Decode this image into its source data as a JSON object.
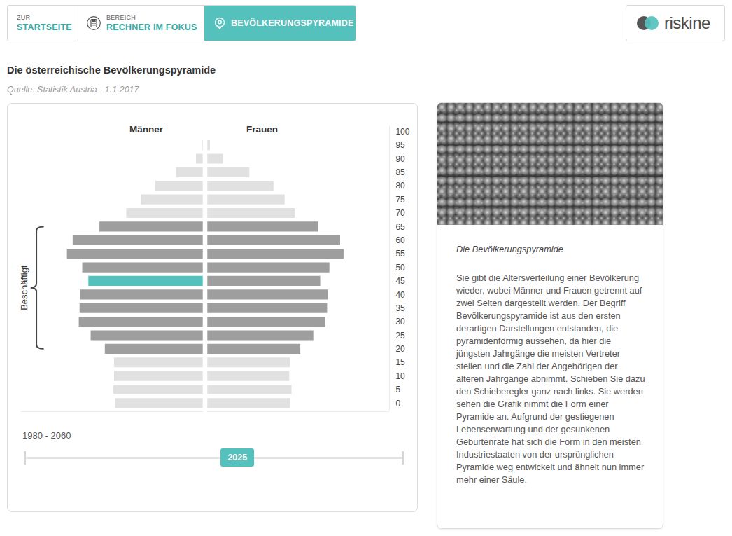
{
  "nav": {
    "home": {
      "small": "ZUR",
      "label": "STARTSEITE"
    },
    "section": {
      "small": "BEREICH",
      "label": "RECHNER IM FOKUS"
    },
    "current": "BEVÖLKERUNGSPYRAMIDE"
  },
  "logo": "riskine",
  "heading": "Die österreichische Bevölkerungspyramide",
  "source": "Quelle: Statistik Austria - 1.1.2017",
  "chart_data": {
    "type": "bar",
    "orientation": "horizontal",
    "categories": [
      0,
      5,
      10,
      15,
      20,
      25,
      30,
      35,
      40,
      45,
      50,
      55,
      60,
      65,
      70,
      75,
      80,
      85,
      90,
      95
    ],
    "series": [
      {
        "name": "Männer",
        "values": [
          230,
          234,
          232,
          232,
          256,
          293,
          324,
          322,
          320,
          299,
          315,
          355,
          340,
          270,
          200,
          162,
          124,
          70,
          18,
          2
        ],
        "colors": [
          "#e1e1e1",
          "#e1e1e1",
          "#e1e1e1",
          "#e1e1e1",
          "#9e9e9e",
          "#9e9e9e",
          "#9e9e9e",
          "#9e9e9e",
          "#9e9e9e",
          "#55c1bd",
          "#9e9e9e",
          "#9e9e9e",
          "#9e9e9e",
          "#9e9e9e",
          "#e1e1e1",
          "#e1e1e1",
          "#e1e1e1",
          "#e1e1e1",
          "#e1e1e1",
          "#e1e1e1"
        ]
      },
      {
        "name": "Frauen",
        "values": [
          216,
          220,
          214,
          216,
          243,
          277,
          308,
          313,
          315,
          295,
          319,
          356,
          347,
          290,
          230,
          202,
          173,
          110,
          41,
          7
        ],
        "colors": [
          "#e1e1e1",
          "#e1e1e1",
          "#e1e1e1",
          "#e1e1e1",
          "#9e9e9e",
          "#9e9e9e",
          "#9e9e9e",
          "#9e9e9e",
          "#9e9e9e",
          "#9e9e9e",
          "#9e9e9e",
          "#9e9e9e",
          "#9e9e9e",
          "#9e9e9e",
          "#e1e1e1",
          "#e1e1e1",
          "#e1e1e1",
          "#e1e1e1",
          "#e1e1e1",
          "#e1e1e1"
        ]
      }
    ],
    "xlim": [
      0,
      475
    ],
    "ylim": [
      -3,
      102
    ],
    "yticks": [
      0,
      5,
      10,
      15,
      20,
      25,
      30,
      35,
      40,
      45,
      50,
      55,
      60,
      65,
      70,
      75,
      80,
      85,
      90,
      95,
      100
    ],
    "tick_labels": "y",
    "grid": false,
    "annotations": [
      {
        "text": "Beschäftigt",
        "from": 20,
        "to": 65
      }
    ]
  },
  "slider": {
    "label": "1980 - 2060",
    "min": 1980,
    "max": 2060,
    "value": 2025
  },
  "info": {
    "title": "Die Bevölkerungspyramide",
    "text": "Sie gibt die Altersverteilung einer Bevölkerung wieder, wobei Männer und Frauen getrennt auf zwei Seiten dargestellt werden. Der Begriff Bevölkerungspyramide ist aus den ersten derartigen Darstellungen entstanden, die pyramidenförmig aussehen, da hier die jüngsten Jahrgänge die meisten Vertreter stellen und die Zahl der Angehörigen der älteren Jahrgänge abnimmt. Schieben Sie dazu den Schieberegler ganz nach links. Sie werden sehen die Grafik nimmt die Form einer Pyramide an. Aufgrund der gestiegenen Lebenserwartung und der gesunkenen Geburtenrate hat sich die Form in den meisten Industriestaaten von der ursprünglichen Pyramide weg entwickelt und ähnelt nun immer mehr einer Säule."
  }
}
